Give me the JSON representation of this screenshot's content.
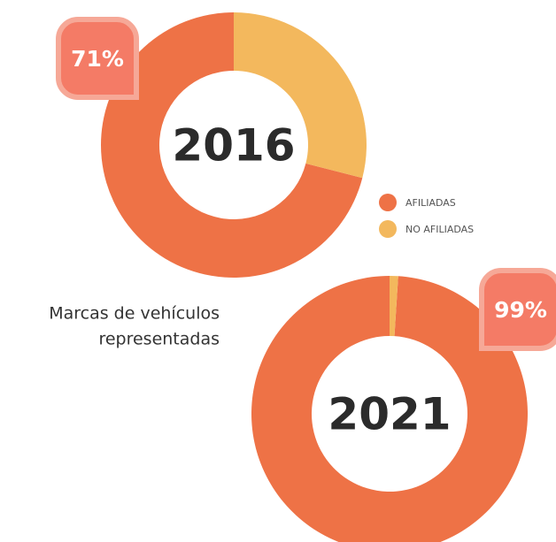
{
  "chart_data": [
    {
      "type": "pie",
      "title": "2016",
      "values": [
        71,
        29
      ],
      "value_labels": [
        "71%",
        null
      ]
    },
    {
      "type": "pie",
      "title": "2021",
      "values": [
        99,
        1
      ],
      "value_labels": [
        "99%",
        null
      ]
    }
  ],
  "legend": {
    "categories": [
      "AFILIADAS",
      "NO AFILIADAS"
    ],
    "colors": [
      "#ee7246",
      "#f3b85d"
    ]
  },
  "caption": [
    "Marcas de vehículos",
    "representadas"
  ]
}
